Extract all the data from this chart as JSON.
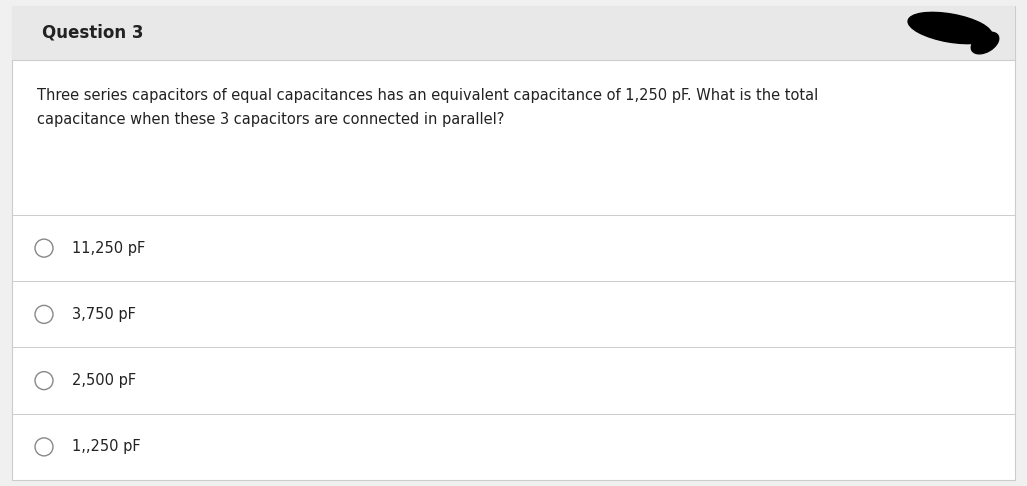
{
  "title": "Question 3",
  "question_text_line1": "Three series capacitors of equal capacitances has an equivalent capacitance of 1,250 pF. What is the total",
  "question_text_line2": "capacitance when these 3 capacitors are connected in parallel?",
  "options": [
    "11,250 pF",
    "3,750 pF",
    "2,500 pF",
    "1,,250 pF"
  ],
  "bg_color": "#f0f0f0",
  "header_bg": "#e8e8e8",
  "content_bg": "#ffffff",
  "title_color": "#222222",
  "question_color": "#222222",
  "option_color": "#222222",
  "divider_color": "#cccccc",
  "circle_color": "#888888",
  "title_fontsize": 12,
  "question_fontsize": 10.5,
  "option_fontsize": 10.5
}
